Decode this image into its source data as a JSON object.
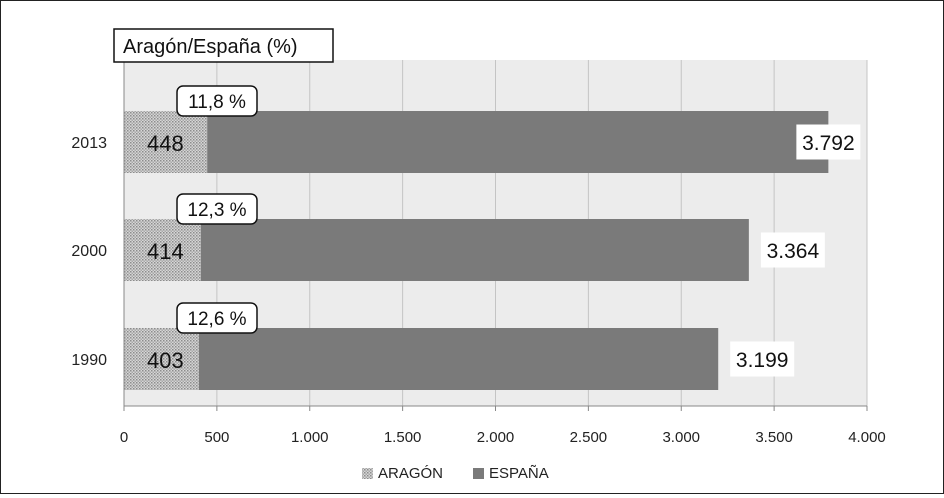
{
  "chart_data": {
    "type": "bar",
    "orientation": "horizontal",
    "stacked": true,
    "title": "Aragón/España (%)",
    "categories": [
      "2013",
      "2000",
      "1990"
    ],
    "series": [
      {
        "name": "ARAGÓN",
        "values": [
          448,
          414,
          403
        ],
        "labels": [
          "448",
          "414",
          "403"
        ],
        "color": "#bdbdbd"
      },
      {
        "name": "ESPAÑA",
        "values": [
          3792,
          3364,
          3199
        ],
        "labels": [
          "3.792",
          "3.364",
          "3.199"
        ],
        "color": "#7a7a7a"
      }
    ],
    "share_labels": [
      "11,8 %",
      "12,3 %",
      "12,6 %"
    ],
    "xlim": [
      0,
      4000
    ],
    "xticks": [
      0,
      500,
      1000,
      1500,
      2000,
      2500,
      3000,
      3500,
      4000
    ],
    "xtick_labels": [
      "0",
      "500",
      "1.000",
      "1.500",
      "2.000",
      "2.500",
      "3.000",
      "3.500",
      "4.000"
    ],
    "grid": true,
    "legend_position": "bottom"
  }
}
